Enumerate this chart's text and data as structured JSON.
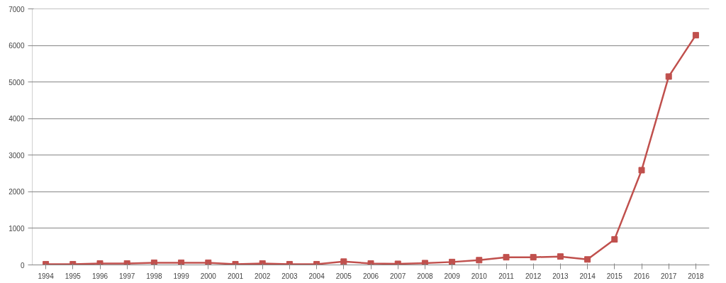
{
  "chart_data": {
    "type": "line",
    "categories": [
      "1994",
      "1995",
      "1996",
      "1997",
      "1998",
      "1999",
      "2000",
      "2001",
      "2002",
      "2003",
      "2004",
      "2005",
      "2006",
      "2007",
      "2008",
      "2009",
      "2010",
      "2011",
      "2012",
      "2013",
      "2014",
      "2015",
      "2016",
      "2017",
      "2018"
    ],
    "series": [
      {
        "color": "#c0504d",
        "values": [
          20,
          20,
          40,
          40,
          60,
          60,
          60,
          20,
          40,
          20,
          20,
          90,
          40,
          30,
          50,
          80,
          130,
          210,
          210,
          230,
          150,
          700,
          2590,
          5150,
          6280
        ]
      }
    ],
    "ylim": [
      0,
      7000
    ],
    "yticks": [
      0,
      1000,
      2000,
      3000,
      4000,
      5000,
      6000,
      7000
    ],
    "grid": "y",
    "marker": "square",
    "line_style": "solid"
  }
}
